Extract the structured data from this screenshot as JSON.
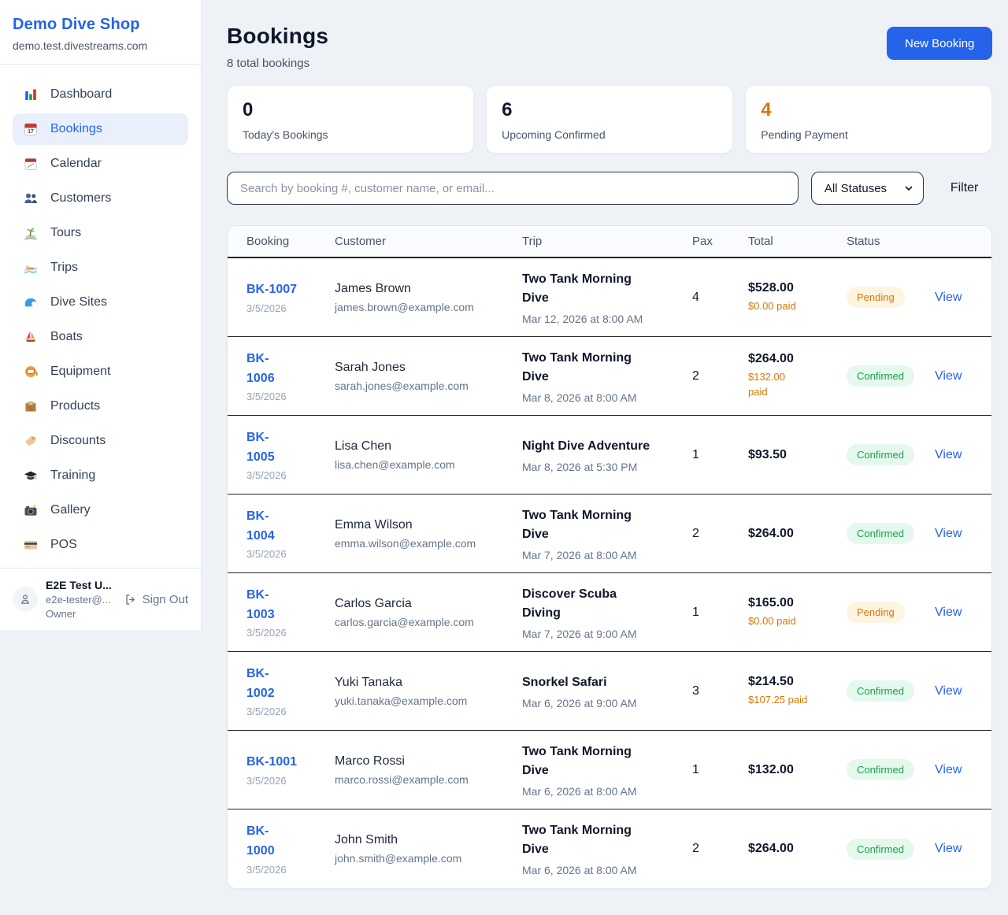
{
  "colors": {
    "accent_blue": "#2563eb",
    "orange": "#d97706",
    "green": "#16a34a",
    "dark_text": "#0f172a",
    "row_divider": "#1a2332"
  },
  "sidebar": {
    "brand": {
      "name": "Demo Dive Shop",
      "domain": "demo.test.divestreams.com"
    },
    "nav": [
      {
        "label": "Dashboard",
        "icon": "dashboard",
        "active": false
      },
      {
        "label": "Bookings",
        "icon": "bookings-calendar",
        "active": true
      },
      {
        "label": "Calendar",
        "icon": "calendar",
        "active": false
      },
      {
        "label": "Customers",
        "icon": "customers",
        "active": false
      },
      {
        "label": "Tours",
        "icon": "tours",
        "active": false
      },
      {
        "label": "Trips",
        "icon": "trips",
        "active": false
      },
      {
        "label": "Dive Sites",
        "icon": "dive-sites",
        "active": false
      },
      {
        "label": "Boats",
        "icon": "boats",
        "active": false
      },
      {
        "label": "Equipment",
        "icon": "equipment",
        "active": false
      },
      {
        "label": "Products",
        "icon": "products",
        "active": false
      },
      {
        "label": "Discounts",
        "icon": "discounts",
        "active": false
      },
      {
        "label": "Training",
        "icon": "training",
        "active": false
      },
      {
        "label": "Gallery",
        "icon": "gallery",
        "active": false
      },
      {
        "label": "POS",
        "icon": "pos",
        "active": false
      }
    ],
    "user": {
      "name": "E2E Test U...",
      "email": "e2e-tester@...",
      "role": "Owner",
      "sign_out_label": "Sign Out"
    }
  },
  "header": {
    "title": "Bookings",
    "subtitle": "8 total bookings",
    "new_booking_label": "New Booking"
  },
  "stats": [
    {
      "value": "0",
      "label": "Today's Bookings",
      "color": "#0f172a"
    },
    {
      "value": "6",
      "label": "Upcoming Confirmed",
      "color": "#0f172a"
    },
    {
      "value": "4",
      "label": "Pending Payment",
      "color": "#d97706"
    }
  ],
  "filters": {
    "search_placeholder": "Search by booking #, customer name, or email...",
    "status_selected": "All Statuses",
    "filter_label": "Filter"
  },
  "table": {
    "columns": [
      "Booking",
      "Customer",
      "Trip",
      "Pax",
      "Total",
      "Status"
    ],
    "view_label": "View",
    "status_styles": {
      "Pending": {
        "bg": "#fdf4e1",
        "text": "#d97706"
      },
      "Confirmed": {
        "bg": "#e5f8ed",
        "text": "#16a34a"
      }
    },
    "rows": [
      {
        "id": "BK-1007",
        "date": "3/5/2026",
        "customer": "James Brown",
        "email": "james.brown@example.com",
        "trip": "Two Tank Morning\nDive",
        "trip_date": "Mar 12, 2026 at 8:00 AM",
        "pax": "4",
        "total": "$528.00",
        "paid": "$0.00 paid",
        "status": "Pending"
      },
      {
        "id": "BK-\n1006",
        "date": "3/5/2026",
        "customer": "Sarah Jones",
        "email": "sarah.jones@example.com",
        "trip": "Two Tank Morning\nDive",
        "trip_date": "Mar 8, 2026 at 8:00 AM",
        "pax": "2",
        "total": "$264.00",
        "paid": "$132.00\npaid",
        "status": "Confirmed"
      },
      {
        "id": "BK-\n1005",
        "date": "3/5/2026",
        "customer": "Lisa Chen",
        "email": "lisa.chen@example.com",
        "trip": "Night Dive Adventure",
        "trip_date": "Mar 8, 2026 at 5:30 PM",
        "pax": "1",
        "total": "$93.50",
        "paid": "",
        "status": "Confirmed"
      },
      {
        "id": "BK-\n1004",
        "date": "3/5/2026",
        "customer": "Emma Wilson",
        "email": "emma.wilson@example.com",
        "trip": "Two Tank Morning\nDive",
        "trip_date": "Mar 7, 2026 at 8:00 AM",
        "pax": "2",
        "total": "$264.00",
        "paid": "",
        "status": "Confirmed"
      },
      {
        "id": "BK-\n1003",
        "date": "3/5/2026",
        "customer": "Carlos Garcia",
        "email": "carlos.garcia@example.com",
        "trip": "Discover Scuba\nDiving",
        "trip_date": "Mar 7, 2026 at 9:00 AM",
        "pax": "1",
        "total": "$165.00",
        "paid": "$0.00 paid",
        "status": "Pending"
      },
      {
        "id": "BK-\n1002",
        "date": "3/5/2026",
        "customer": "Yuki Tanaka",
        "email": "yuki.tanaka@example.com",
        "trip": "Snorkel Safari",
        "trip_date": "Mar 6, 2026 at 9:00 AM",
        "pax": "3",
        "total": "$214.50",
        "paid": "$107.25 paid",
        "status": "Confirmed"
      },
      {
        "id": "BK-1001",
        "date": "3/5/2026",
        "customer": "Marco Rossi",
        "email": "marco.rossi@example.com",
        "trip": "Two Tank Morning\nDive",
        "trip_date": "Mar 6, 2026 at 8:00 AM",
        "pax": "1",
        "total": "$132.00",
        "paid": "",
        "status": "Confirmed"
      },
      {
        "id": "BK-\n1000",
        "date": "3/5/2026",
        "customer": "John Smith",
        "email": "john.smith@example.com",
        "trip": "Two Tank Morning\nDive",
        "trip_date": "Mar 6, 2026 at 8:00 AM",
        "pax": "2",
        "total": "$264.00",
        "paid": "",
        "status": "Confirmed"
      }
    ]
  }
}
